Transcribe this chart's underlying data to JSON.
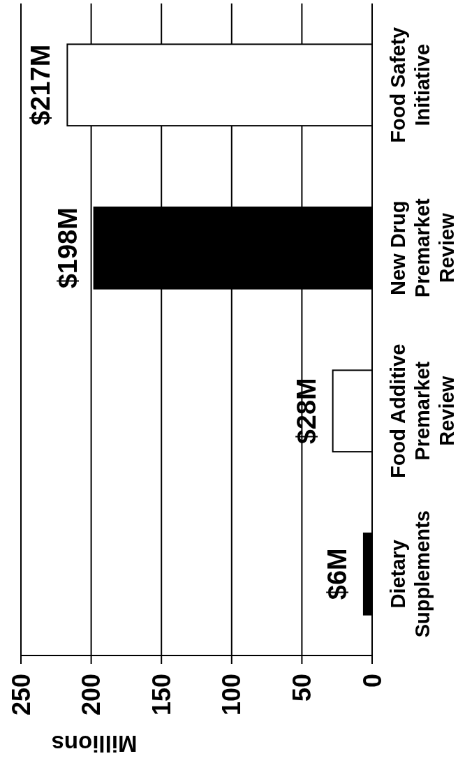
{
  "chart_data": {
    "type": "bar",
    "orientation": "horizontal",
    "xlabel": "Millions",
    "categories": [
      "Food Safety Initiative",
      "New Drug Premarket Review",
      "Food Additive Premarket Review",
      "Dietary Supplements"
    ],
    "values": [
      217,
      198,
      28,
      6
    ],
    "colors": [
      "#ffffff",
      "#000000",
      "#ffffff",
      "#000000"
    ],
    "value_labels": [
      "$217M",
      "$198M",
      "$28M",
      "$6M"
    ],
    "xlim": [
      250,
      0
    ],
    "xticks": [
      250,
      200,
      150,
      100,
      50,
      0
    ],
    "grid": "x"
  }
}
